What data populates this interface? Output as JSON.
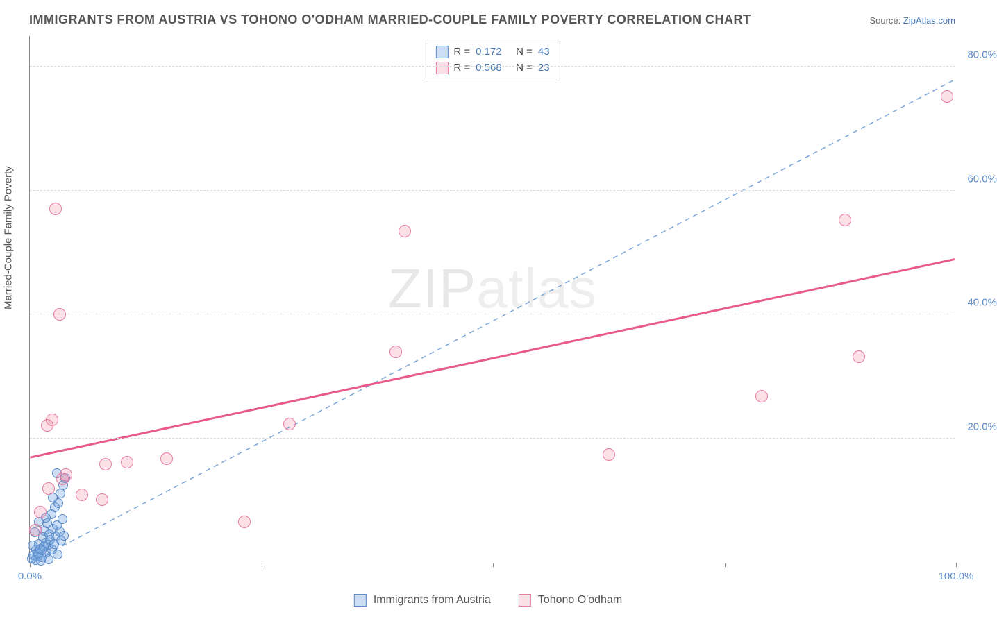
{
  "title": "IMMIGRANTS FROM AUSTRIA VS TOHONO O'ODHAM MARRIED-COUPLE FAMILY POVERTY CORRELATION CHART",
  "source_prefix": "Source: ",
  "source_link": "ZipAtlas.com",
  "yaxis_label": "Married-Couple Family Poverty",
  "watermark_a": "ZIP",
  "watermark_b": "atlas",
  "chart": {
    "type": "scatter",
    "xlim": [
      0,
      100
    ],
    "ylim": [
      0,
      85
    ],
    "xticks": [
      0,
      25,
      50,
      75,
      100
    ],
    "xtick_labels": [
      "0.0%",
      "",
      "",
      "",
      "100.0%"
    ],
    "yticks": [
      20,
      40,
      60,
      80
    ],
    "ytick_labels": [
      "20.0%",
      "40.0%",
      "60.0%",
      "80.0%"
    ],
    "grid_color": "#dddddd",
    "axis_color": "#888888",
    "background": "#ffffff",
    "tick_label_color": "#5b8bc9",
    "series": [
      {
        "name": "Immigrants from Austria",
        "color_fill": "rgba(110,160,220,0.35)",
        "color_stroke": "#5b8bc9",
        "marker_size": 14,
        "R": 0.172,
        "N": 43,
        "trend": {
          "x1": 0,
          "y1": 0,
          "x2": 100,
          "y2": 78,
          "dash": true,
          "width": 1.5,
          "color": "#7aa6d8"
        },
        "points": [
          [
            0.2,
            0.7
          ],
          [
            0.4,
            1.2
          ],
          [
            0.6,
            0.4
          ],
          [
            0.7,
            2.1
          ],
          [
            0.9,
            1.5
          ],
          [
            1.0,
            3.0
          ],
          [
            1.1,
            2.2
          ],
          [
            1.3,
            0.9
          ],
          [
            1.4,
            4.1
          ],
          [
            1.5,
            2.6
          ],
          [
            1.6,
            5.2
          ],
          [
            1.7,
            3.3
          ],
          [
            1.8,
            1.7
          ],
          [
            1.9,
            6.4
          ],
          [
            2.0,
            2.9
          ],
          [
            2.1,
            4.6
          ],
          [
            2.2,
            3.7
          ],
          [
            2.3,
            7.8
          ],
          [
            2.4,
            2.1
          ],
          [
            2.5,
            5.5
          ],
          [
            2.6,
            3.0
          ],
          [
            2.7,
            8.9
          ],
          [
            2.8,
            4.2
          ],
          [
            2.9,
            6.0
          ],
          [
            3.0,
            1.3
          ],
          [
            3.1,
            9.6
          ],
          [
            3.2,
            5.0
          ],
          [
            3.3,
            11.2
          ],
          [
            3.4,
            3.6
          ],
          [
            3.5,
            7.1
          ],
          [
            3.6,
            12.5
          ],
          [
            3.7,
            4.4
          ],
          [
            3.8,
            13.7
          ],
          [
            1.2,
            0.3
          ],
          [
            0.3,
            2.8
          ],
          [
            0.5,
            4.9
          ],
          [
            0.8,
            1.0
          ],
          [
            1.0,
            6.6
          ],
          [
            1.3,
            2.0
          ],
          [
            1.7,
            7.3
          ],
          [
            2.0,
            0.6
          ],
          [
            2.5,
            10.5
          ],
          [
            2.9,
            14.4
          ]
        ]
      },
      {
        "name": "Tohono O'odham",
        "color_fill": "rgba(240,130,160,0.25)",
        "color_stroke": "#e87ca0",
        "marker_size": 18,
        "R": 0.568,
        "N": 23,
        "trend": {
          "x1": 0,
          "y1": 17,
          "x2": 100,
          "y2": 49,
          "dash": false,
          "width": 3,
          "color": "#e75a8a"
        },
        "points": [
          [
            0.6,
            5.3
          ],
          [
            1.1,
            8.2
          ],
          [
            1.9,
            22.1
          ],
          [
            2.0,
            12.0
          ],
          [
            2.4,
            23.0
          ],
          [
            2.8,
            57.0
          ],
          [
            3.2,
            40.0
          ],
          [
            3.9,
            14.2
          ],
          [
            5.6,
            11.0
          ],
          [
            7.8,
            10.2
          ],
          [
            8.2,
            15.9
          ],
          [
            10.5,
            16.2
          ],
          [
            14.8,
            16.8
          ],
          [
            23.2,
            6.6
          ],
          [
            28.0,
            22.4
          ],
          [
            39.5,
            34.0
          ],
          [
            40.5,
            53.5
          ],
          [
            62.5,
            17.5
          ],
          [
            79.0,
            26.8
          ],
          [
            88.0,
            55.3
          ],
          [
            89.5,
            33.2
          ],
          [
            99.0,
            75.2
          ],
          [
            3.5,
            13.5
          ]
        ]
      }
    ]
  },
  "stats_labels": {
    "R": "R =",
    "N": "N ="
  },
  "legend": {
    "items": [
      {
        "label": "Immigrants from Austria",
        "swatch": "blue"
      },
      {
        "label": "Tohono O'odham",
        "swatch": "pink"
      }
    ]
  }
}
